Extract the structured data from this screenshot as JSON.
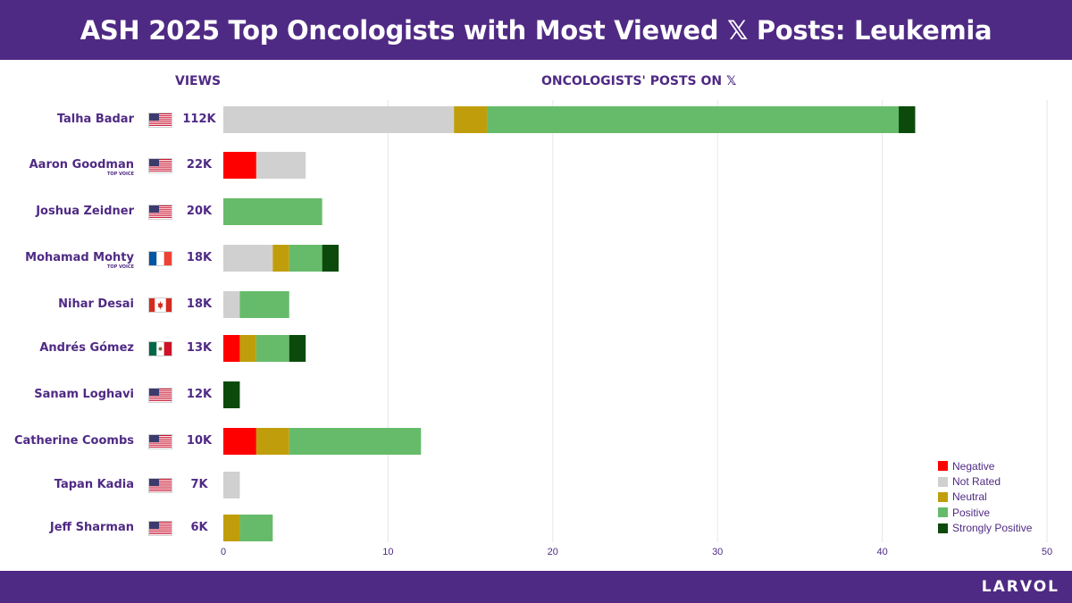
{
  "header": {
    "title": "ASH 2025 Top Oncologists with Most Viewed 𝕏 Posts: Leukemia"
  },
  "columns": {
    "views": "VIEWS",
    "posts": "ONCOLOGISTS' POSTS ON 𝕏"
  },
  "footer": {
    "brand": "LARVOL"
  },
  "colors": {
    "Negative": "#ff0000",
    "Not Rated": "#d0d0d0",
    "Neutral": "#c09e0b",
    "Positive": "#66bb6a",
    "Strongly Positive": "#0b4a0b",
    "brand_purple": "#4f2a84"
  },
  "rows": [
    {
      "name": "Talha Badar",
      "badge": "",
      "flag": "us",
      "views": "112K"
    },
    {
      "name": "Aaron Goodman",
      "badge": "TOP VOICE",
      "flag": "us",
      "views": "22K"
    },
    {
      "name": "Joshua Zeidner",
      "badge": "",
      "flag": "us",
      "views": "20K"
    },
    {
      "name": "Mohamad Mohty",
      "badge": "TOP VOICE",
      "flag": "fr",
      "views": "18K"
    },
    {
      "name": "Nihar Desai",
      "badge": "",
      "flag": "ca",
      "views": "18K"
    },
    {
      "name": "Andrés Gómez",
      "badge": "",
      "flag": "mx",
      "views": "13K"
    },
    {
      "name": "Sanam Loghavi",
      "badge": "",
      "flag": "us",
      "views": "12K"
    },
    {
      "name": "Catherine Coombs",
      "badge": "",
      "flag": "us",
      "views": "10K"
    },
    {
      "name": "Tapan Kadia",
      "badge": "",
      "flag": "us",
      "views": "7K"
    },
    {
      "name": "Jeff Sharman",
      "badge": "",
      "flag": "us",
      "views": "6K"
    }
  ],
  "chart_data": {
    "type": "bar",
    "orientation": "horizontal",
    "stacked": true,
    "title": "ONCOLOGISTS' POSTS ON 𝕏",
    "categories": [
      "Talha Badar",
      "Aaron Goodman",
      "Joshua Zeidner",
      "Mohamad Mohty",
      "Nihar Desai",
      "Andrés Gómez",
      "Sanam Loghavi",
      "Catherine Coombs",
      "Tapan Kadia",
      "Jeff Sharman"
    ],
    "series": [
      {
        "name": "Negative",
        "values": [
          0,
          2,
          0,
          0,
          0,
          1,
          0,
          2,
          0,
          0
        ]
      },
      {
        "name": "Not Rated",
        "values": [
          14,
          3,
          0,
          3,
          1,
          0,
          0,
          0,
          1,
          0
        ]
      },
      {
        "name": "Neutral",
        "values": [
          2,
          0,
          0,
          1,
          0,
          1,
          0,
          2,
          0,
          1
        ]
      },
      {
        "name": "Positive",
        "values": [
          25,
          0,
          6,
          2,
          3,
          2,
          0,
          8,
          0,
          2
        ]
      },
      {
        "name": "Strongly Positive",
        "values": [
          1,
          0,
          0,
          1,
          0,
          1,
          1,
          0,
          0,
          0
        ]
      }
    ],
    "xlim": [
      0,
      50
    ],
    "xticks": [
      0,
      10,
      20,
      30,
      40,
      50
    ],
    "grid": true,
    "legend_position": "bottom-right"
  }
}
